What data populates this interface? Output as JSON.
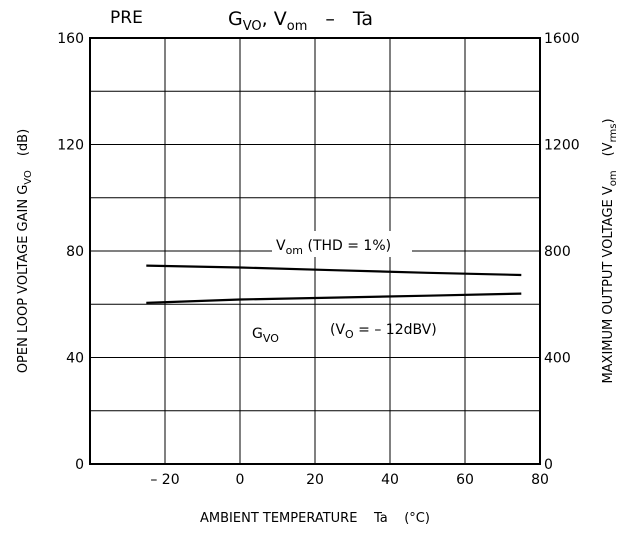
{
  "chart_data": {
    "type": "line",
    "title": "GVO, Vom  –  Ta",
    "title_parts": {
      "g": "G",
      "g_sub": "VO",
      "sep": ", ",
      "v": "V",
      "v_sub": "om",
      "dash": "–",
      "ta": "Ta"
    },
    "corner_label": "PRE",
    "xlabel": "AMBIENT TEMPERATURE    Ta    (°C)",
    "ylabel_left": {
      "text": "OPEN LOOP VOLTAGE GAIN   G",
      "sub": "VO",
      "unit": "(dB)"
    },
    "ylabel_right": {
      "text": "MAXIMUM OUTPUT VOLTAGE   V",
      "sub": "om",
      "unit_main": "(V",
      "unit_sub": "rms",
      "unit_close": ")"
    },
    "xlim": [
      -40,
      80
    ],
    "x_ticks": [
      -20,
      0,
      20,
      40,
      60,
      80
    ],
    "x_tick_labels": [
      "– 20",
      "0",
      "20",
      "40",
      "60",
      "80"
    ],
    "ylim_left": [
      0,
      160
    ],
    "y_ticks_left": [
      0,
      40,
      80,
      120,
      160
    ],
    "ylim_right": [
      0,
      1600
    ],
    "y_ticks_right": [
      0,
      400,
      800,
      1200,
      1600
    ],
    "grid_x": [
      -20,
      0,
      20,
      40,
      60
    ],
    "grid_y": [
      20,
      40,
      60,
      80,
      100,
      120,
      140
    ],
    "series": [
      {
        "name": "Vom",
        "axis": "right",
        "x": [
          -25,
          0,
          25,
          50,
          75
        ],
        "y": [
          745,
          738,
          728,
          718,
          710
        ],
        "label": {
          "main": "V",
          "sub": "om",
          "rest": " (THD = 1%)"
        }
      },
      {
        "name": "GVO",
        "axis": "left",
        "x": [
          -25,
          0,
          25,
          50,
          75
        ],
        "y": [
          60.5,
          61.8,
          62.5,
          63.2,
          64.0
        ],
        "label": {
          "main": "G",
          "sub": "VO"
        },
        "condition": {
          "pre": "(V",
          "sub": "O",
          "post": " = – 12dBV)"
        }
      }
    ]
  }
}
